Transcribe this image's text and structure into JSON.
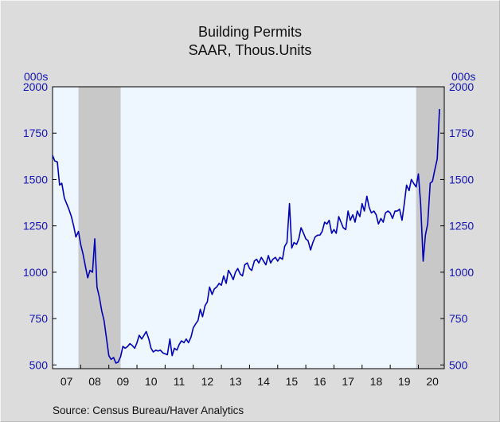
{
  "chart_data": {
    "type": "line",
    "title": "Building Permits",
    "subtitle": "SAAR, Thous.Units",
    "ylabel_left": "000s",
    "ylabel_right": "000s",
    "source": "Source:   Census Bureau/Haver Analytics",
    "ylim": [
      480,
      2000
    ],
    "yticks": [
      500,
      750,
      1000,
      1250,
      1500,
      1750,
      2000
    ],
    "xlim": [
      2007.0,
      2020.92
    ],
    "xtick_labels": [
      "07",
      "08",
      "09",
      "10",
      "11",
      "12",
      "13",
      "14",
      "15",
      "16",
      "17",
      "18",
      "19",
      "20"
    ],
    "grid": false,
    "recessions": [
      [
        2007.92,
        2009.42
      ],
      [
        2019.92,
        2020.92
      ]
    ],
    "colors": {
      "line": "#0000b4",
      "plot_bg": "#eef6ff",
      "recession": "#c8c8c8",
      "axis_text": "#1414b4"
    },
    "series": [
      {
        "x": [
          2007.0,
          2007.08,
          2007.17,
          2007.25,
          2007.33,
          2007.42,
          2007.5,
          2007.58,
          2007.67,
          2007.75,
          2007.83,
          2007.92,
          2008.0,
          2008.08,
          2008.17,
          2008.25,
          2008.33,
          2008.42,
          2008.5,
          2008.58,
          2008.67,
          2008.75,
          2008.83,
          2008.92,
          2009.0,
          2009.08,
          2009.17,
          2009.25,
          2009.33,
          2009.42,
          2009.5,
          2009.58,
          2009.67,
          2009.75,
          2009.83,
          2009.92,
          2010.0,
          2010.08,
          2010.17,
          2010.25,
          2010.33,
          2010.42,
          2010.5,
          2010.58,
          2010.67,
          2010.75,
          2010.83,
          2010.92,
          2011.0,
          2011.08,
          2011.17,
          2011.25,
          2011.33,
          2011.42,
          2011.5,
          2011.58,
          2011.67,
          2011.75,
          2011.83,
          2011.92,
          2012.0,
          2012.08,
          2012.17,
          2012.25,
          2012.33,
          2012.42,
          2012.5,
          2012.58,
          2012.67,
          2012.75,
          2012.83,
          2012.92,
          2013.0,
          2013.08,
          2013.17,
          2013.25,
          2013.33,
          2013.42,
          2013.5,
          2013.58,
          2013.67,
          2013.75,
          2013.83,
          2013.92,
          2014.0,
          2014.08,
          2014.17,
          2014.25,
          2014.33,
          2014.42,
          2014.5,
          2014.58,
          2014.67,
          2014.75,
          2014.83,
          2014.92,
          2015.0,
          2015.08,
          2015.17,
          2015.25,
          2015.33,
          2015.42,
          2015.5,
          2015.58,
          2015.67,
          2015.75,
          2015.83,
          2015.92,
          2016.0,
          2016.08,
          2016.17,
          2016.25,
          2016.33,
          2016.42,
          2016.5,
          2016.58,
          2016.67,
          2016.75,
          2016.83,
          2016.92,
          2017.0,
          2017.08,
          2017.17,
          2017.25,
          2017.33,
          2017.42,
          2017.5,
          2017.58,
          2017.67,
          2017.75,
          2017.83,
          2017.92,
          2018.0,
          2018.08,
          2018.17,
          2018.25,
          2018.33,
          2018.42,
          2018.5,
          2018.58,
          2018.67,
          2018.75,
          2018.83,
          2018.92,
          2019.0,
          2019.08,
          2019.17,
          2019.25,
          2019.33,
          2019.42,
          2019.5,
          2019.58,
          2019.67,
          2019.75,
          2019.83,
          2019.92,
          2020.0,
          2020.08,
          2020.17,
          2020.25,
          2020.33,
          2020.42,
          2020.5,
          2020.58,
          2020.67,
          2020.75
        ],
        "values": [
          1630,
          1600,
          1595,
          1470,
          1480,
          1400,
          1370,
          1340,
          1300,
          1250,
          1190,
          1220,
          1150,
          1100,
          1030,
          970,
          1010,
          1000,
          1180,
          920,
          860,
          790,
          740,
          640,
          550,
          530,
          540,
          510,
          515,
          545,
          600,
          590,
          600,
          615,
          605,
          590,
          620,
          660,
          640,
          660,
          680,
          640,
          590,
          570,
          580,
          575,
          580,
          565,
          560,
          555,
          640,
          550,
          590,
          580,
          610,
          630,
          620,
          640,
          620,
          650,
          700,
          720,
          740,
          800,
          760,
          820,
          840,
          920,
          880,
          910,
          920,
          940,
          930,
          980,
          940,
          1010,
          990,
          960,
          1000,
          1020,
          990,
          980,
          1040,
          1050,
          1020,
          1010,
          1060,
          1070,
          1050,
          1080,
          1060,
          1040,
          1090,
          1050,
          1070,
          1080,
          1060,
          1080,
          1070,
          1140,
          1160,
          1370,
          1130,
          1160,
          1150,
          1180,
          1240,
          1210,
          1180,
          1170,
          1120,
          1160,
          1190,
          1200,
          1200,
          1220,
          1270,
          1260,
          1280,
          1210,
          1230,
          1210,
          1300,
          1270,
          1240,
          1230,
          1330,
          1280,
          1310,
          1270,
          1330,
          1300,
          1370,
          1330,
          1410,
          1350,
          1320,
          1330,
          1310,
          1260,
          1290,
          1270,
          1320,
          1330,
          1320,
          1290,
          1330,
          1330,
          1340,
          1280,
          1370,
          1470,
          1440,
          1500,
          1480,
          1460,
          1530,
          1370,
          1060,
          1200,
          1260,
          1480,
          1490,
          1550,
          1610,
          1880
        ]
      }
    ]
  }
}
